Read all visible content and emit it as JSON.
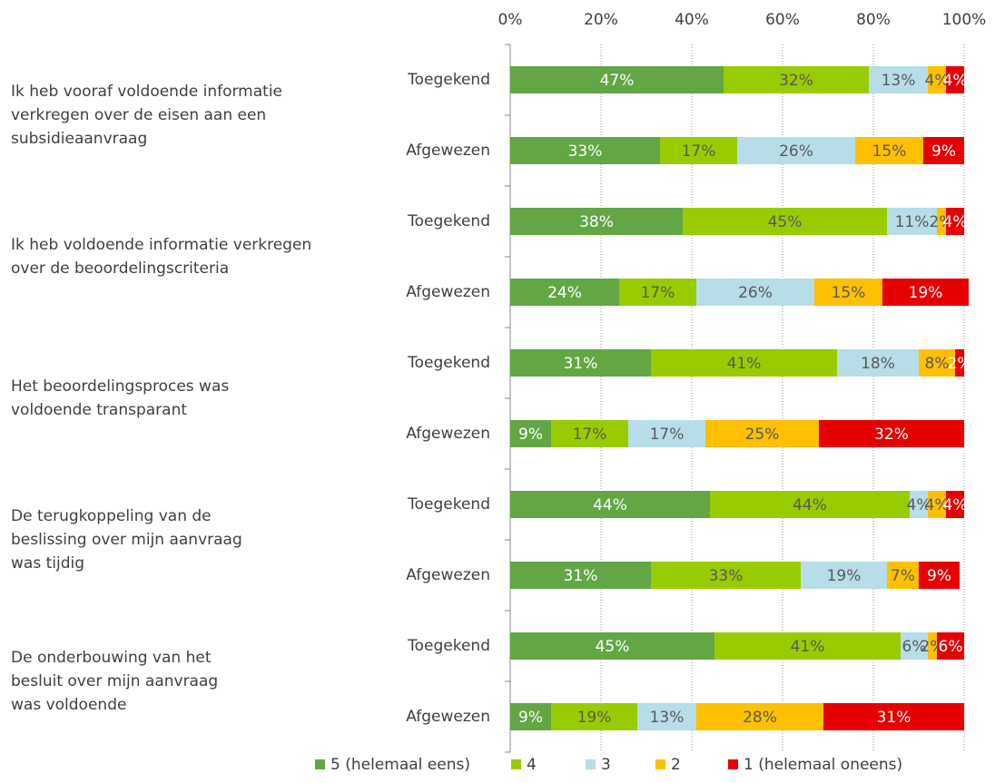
{
  "chart_data": {
    "type": "stacked_barh",
    "groups": [
      [
        "Ik heb vooraf voldoende informatie",
        "verkregen over de eisen aan een",
        "subsidieaanvraag"
      ],
      [
        "Ik heb voldoende informatie verkregen",
        "over de beoordelingscriteria"
      ],
      [
        "Het beoordelingsproces was",
        "voldoende transparant"
      ],
      [
        "De terugkoppeling van de",
        "beslissing over mijn aanvraag",
        "was tijdig"
      ],
      [
        "De onderbouwing van het",
        "besluit over mijn aanvraag",
        "was voldoende"
      ]
    ],
    "categories": [
      "Toegekend",
      "Afgewezen",
      "Toegekend",
      "Afgewezen",
      "Toegekend",
      "Afgewezen",
      "Toegekend",
      "Afgewezen",
      "Toegekend",
      "Afgewezen"
    ],
    "series": [
      {
        "name": "5 (helemaal eens)",
        "color": "#62a744",
        "values": [
          47,
          33,
          38,
          24,
          31,
          9,
          44,
          31,
          45,
          9
        ],
        "value_labels": [
          "47%",
          "33%",
          "38%",
          "24%",
          "31%",
          "9%",
          "44%",
          "31%",
          "45%",
          "9%"
        ]
      },
      {
        "name": "4",
        "color": "#99cc00",
        "values": [
          32,
          17,
          45,
          17,
          41,
          17,
          44,
          33,
          41,
          19
        ],
        "value_labels": [
          "32%",
          "17%",
          "45%",
          "17%",
          "41%",
          "17%",
          "44%",
          "33%",
          "41%",
          "19%"
        ]
      },
      {
        "name": "3",
        "color": "#b7dde8",
        "values": [
          13,
          26,
          11,
          26,
          18,
          17,
          4,
          19,
          6,
          13
        ],
        "value_labels": [
          "13%",
          "26%",
          "11%",
          "26%",
          "18%",
          "17%",
          "4%",
          "19%",
          "6%",
          "13%"
        ]
      },
      {
        "name": "2",
        "color": "#ffc000",
        "values": [
          4,
          15,
          2,
          15,
          8,
          25,
          4,
          7,
          2,
          28
        ],
        "value_labels": [
          "4%",
          "15%",
          "2%",
          "15%",
          "8%",
          "25%",
          "4%",
          "7%",
          "2%",
          "28%"
        ]
      },
      {
        "name": "1 (helemaal oneens)",
        "color": "#e60000",
        "values": [
          4,
          9,
          4,
          19,
          2,
          32,
          4,
          9,
          6,
          31
        ],
        "value_labels": [
          "4%",
          "9%",
          "4%",
          "19%",
          "2%",
          "32%",
          "4%",
          "9%",
          "6%",
          "31%"
        ]
      }
    ],
    "xlim": [
      0,
      100
    ],
    "xticks": [
      {
        "value": 0,
        "label": "0%"
      },
      {
        "value": 20,
        "label": "20%"
      },
      {
        "value": 40,
        "label": "40%"
      },
      {
        "value": 60,
        "label": "60%"
      },
      {
        "value": 80,
        "label": "80%"
      },
      {
        "value": 100,
        "label": "100%"
      }
    ],
    "grid": true
  }
}
